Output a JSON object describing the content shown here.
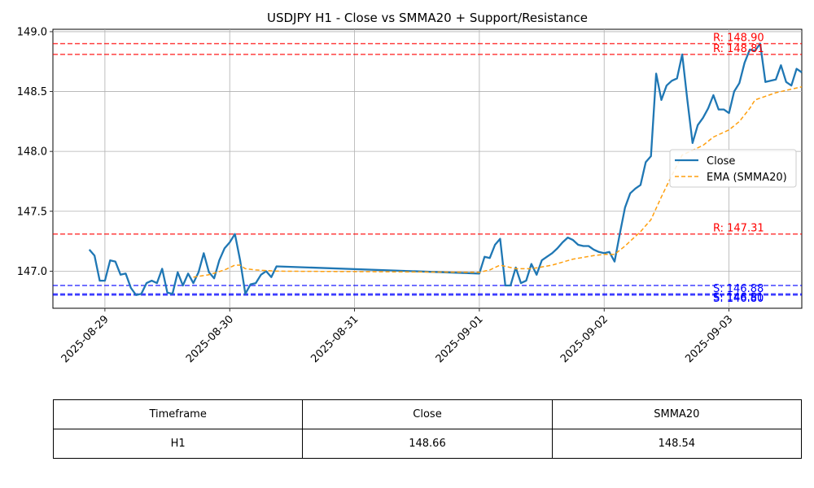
{
  "chart_data": {
    "type": "line",
    "title": "USDJPY H1 - Close vs SMMA20 + Support/Resistance",
    "xlabel": "",
    "ylabel": "",
    "ylim": [
      146.69,
      149.02
    ],
    "yticks": [
      147.0,
      147.5,
      148.0,
      148.5,
      149.0
    ],
    "ytick_labels": [
      "147.0",
      "147.5",
      "148.0",
      "148.5",
      "149.0"
    ],
    "xlim": [
      "2025-08-28 14:00",
      "2025-09-03 14:00"
    ],
    "xticks": [
      "2025-08-29",
      "2025-08-30",
      "2025-08-31",
      "2025-09-01",
      "2025-09-02",
      "2025-09-03"
    ],
    "grid": true,
    "legend_position": "center-right",
    "series": [
      {
        "name": "Close",
        "color": "#1f77b4",
        "style": "solid",
        "points": [
          [
            "2025-08-28 21:00",
            147.18
          ],
          [
            "2025-08-28 22:00",
            147.13
          ],
          [
            "2025-08-28 23:00",
            146.92
          ],
          [
            "2025-08-29 00:00",
            146.92
          ],
          [
            "2025-08-29 01:00",
            147.09
          ],
          [
            "2025-08-29 02:00",
            147.08
          ],
          [
            "2025-08-29 03:00",
            146.97
          ],
          [
            "2025-08-29 04:00",
            146.98
          ],
          [
            "2025-08-29 05:00",
            146.86
          ],
          [
            "2025-08-29 06:00",
            146.8
          ],
          [
            "2025-08-29 07:00",
            146.81
          ],
          [
            "2025-08-29 08:00",
            146.9
          ],
          [
            "2025-08-29 09:00",
            146.92
          ],
          [
            "2025-08-29 10:00",
            146.9
          ],
          [
            "2025-08-29 11:00",
            147.02
          ],
          [
            "2025-08-29 12:00",
            146.82
          ],
          [
            "2025-08-29 13:00",
            146.81
          ],
          [
            "2025-08-29 14:00",
            146.99
          ],
          [
            "2025-08-29 15:00",
            146.88
          ],
          [
            "2025-08-29 16:00",
            146.98
          ],
          [
            "2025-08-29 17:00",
            146.9
          ],
          [
            "2025-08-29 18:00",
            146.99
          ],
          [
            "2025-08-29 19:00",
            147.15
          ],
          [
            "2025-08-29 20:00",
            146.99
          ],
          [
            "2025-08-29 21:00",
            146.94
          ],
          [
            "2025-08-29 22:00",
            147.09
          ],
          [
            "2025-08-29 23:00",
            147.19
          ],
          [
            "2025-08-30 00:00",
            147.24
          ],
          [
            "2025-08-30 01:00",
            147.31
          ],
          [
            "2025-08-30 02:00",
            147.09
          ],
          [
            "2025-08-30 03:00",
            146.81
          ],
          [
            "2025-08-30 04:00",
            146.89
          ],
          [
            "2025-08-30 05:00",
            146.9
          ],
          [
            "2025-08-30 06:00",
            146.97
          ],
          [
            "2025-08-30 07:00",
            147.0
          ],
          [
            "2025-08-30 08:00",
            146.95
          ],
          [
            "2025-08-30 09:00",
            147.04
          ],
          [
            "2025-09-01 00:00",
            146.98
          ],
          [
            "2025-09-01 01:00",
            147.12
          ],
          [
            "2025-09-01 02:00",
            147.11
          ],
          [
            "2025-09-01 03:00",
            147.22
          ],
          [
            "2025-09-01 04:00",
            147.27
          ],
          [
            "2025-09-01 05:00",
            146.88
          ],
          [
            "2025-09-01 06:00",
            146.88
          ],
          [
            "2025-09-01 07:00",
            147.03
          ],
          [
            "2025-09-01 08:00",
            146.9
          ],
          [
            "2025-09-01 09:00",
            146.92
          ],
          [
            "2025-09-01 10:00",
            147.06
          ],
          [
            "2025-09-01 11:00",
            146.97
          ],
          [
            "2025-09-01 12:00",
            147.09
          ],
          [
            "2025-09-01 13:00",
            147.12
          ],
          [
            "2025-09-01 14:00",
            147.15
          ],
          [
            "2025-09-01 15:00",
            147.19
          ],
          [
            "2025-09-01 16:00",
            147.24
          ],
          [
            "2025-09-01 17:00",
            147.28
          ],
          [
            "2025-09-01 18:00",
            147.26
          ],
          [
            "2025-09-01 19:00",
            147.22
          ],
          [
            "2025-09-01 20:00",
            147.21
          ],
          [
            "2025-09-01 21:00",
            147.21
          ],
          [
            "2025-09-01 22:00",
            147.18
          ],
          [
            "2025-09-01 23:00",
            147.16
          ],
          [
            "2025-09-02 00:00",
            147.15
          ],
          [
            "2025-09-02 01:00",
            147.16
          ],
          [
            "2025-09-02 02:00",
            147.08
          ],
          [
            "2025-09-02 03:00",
            147.31
          ],
          [
            "2025-09-02 04:00",
            147.53
          ],
          [
            "2025-09-02 05:00",
            147.65
          ],
          [
            "2025-09-02 06:00",
            147.69
          ],
          [
            "2025-09-02 07:00",
            147.72
          ],
          [
            "2025-09-02 08:00",
            147.91
          ],
          [
            "2025-09-02 09:00",
            147.96
          ],
          [
            "2025-09-02 10:00",
            148.65
          ],
          [
            "2025-09-02 11:00",
            148.43
          ],
          [
            "2025-09-02 12:00",
            148.55
          ],
          [
            "2025-09-02 13:00",
            148.59
          ],
          [
            "2025-09-02 14:00",
            148.61
          ],
          [
            "2025-09-02 15:00",
            148.81
          ],
          [
            "2025-09-02 16:00",
            148.43
          ],
          [
            "2025-09-02 17:00",
            148.07
          ],
          [
            "2025-09-02 18:00",
            148.22
          ],
          [
            "2025-09-02 19:00",
            148.28
          ],
          [
            "2025-09-02 20:00",
            148.36
          ],
          [
            "2025-09-02 21:00",
            148.47
          ],
          [
            "2025-09-02 22:00",
            148.35
          ],
          [
            "2025-09-02 23:00",
            148.35
          ],
          [
            "2025-09-03 00:00",
            148.32
          ],
          [
            "2025-09-03 01:00",
            148.5
          ],
          [
            "2025-09-03 02:00",
            148.57
          ],
          [
            "2025-09-03 03:00",
            148.74
          ],
          [
            "2025-09-03 04:00",
            148.85
          ],
          [
            "2025-09-03 05:00",
            148.84
          ],
          [
            "2025-09-03 06:00",
            148.9
          ],
          [
            "2025-09-03 07:00",
            148.58
          ],
          [
            "2025-09-03 08:00",
            148.59
          ],
          [
            "2025-09-03 09:00",
            148.6
          ],
          [
            "2025-09-03 10:00",
            148.72
          ],
          [
            "2025-09-03 11:00",
            148.58
          ],
          [
            "2025-09-03 12:00",
            148.55
          ],
          [
            "2025-09-03 13:00",
            148.69
          ],
          [
            "2025-09-03 14:00",
            148.66
          ]
        ]
      },
      {
        "name": "EMA (SMMA20)",
        "color": "#ff9f0e",
        "style": "dashed",
        "points": [
          [
            "2025-08-29 17:00",
            146.95
          ],
          [
            "2025-08-29 20:00",
            146.97
          ],
          [
            "2025-08-29 23:00",
            147.01
          ],
          [
            "2025-08-30 01:00",
            147.05
          ],
          [
            "2025-08-30 02:00",
            147.05
          ],
          [
            "2025-08-30 03:00",
            147.02
          ],
          [
            "2025-08-30 05:00",
            147.01
          ],
          [
            "2025-08-30 09:00",
            147.0
          ],
          [
            "2025-09-01 00:00",
            146.99
          ],
          [
            "2025-09-01 02:00",
            147.01
          ],
          [
            "2025-09-01 04:00",
            147.05
          ],
          [
            "2025-09-01 07:00",
            147.02
          ],
          [
            "2025-09-01 10:00",
            147.02
          ],
          [
            "2025-09-01 14:00",
            147.05
          ],
          [
            "2025-09-01 18:00",
            147.1
          ],
          [
            "2025-09-01 22:00",
            147.13
          ],
          [
            "2025-09-02 00:00",
            147.14
          ],
          [
            "2025-09-02 02:00",
            147.14
          ],
          [
            "2025-09-02 04:00",
            147.21
          ],
          [
            "2025-09-02 07:00",
            147.33
          ],
          [
            "2025-09-02 09:00",
            147.43
          ],
          [
            "2025-09-02 11:00",
            147.62
          ],
          [
            "2025-09-02 13:00",
            147.8
          ],
          [
            "2025-09-02 15:00",
            147.97
          ],
          [
            "2025-09-02 17:00",
            148.01
          ],
          [
            "2025-09-02 19:00",
            148.05
          ],
          [
            "2025-09-02 21:00",
            148.12
          ],
          [
            "2025-09-03 00:00",
            148.18
          ],
          [
            "2025-09-03 02:00",
            148.25
          ],
          [
            "2025-09-03 04:00",
            148.36
          ],
          [
            "2025-09-03 05:00",
            148.43
          ],
          [
            "2025-09-03 07:00",
            148.46
          ],
          [
            "2025-09-03 09:00",
            148.49
          ],
          [
            "2025-09-03 11:00",
            148.51
          ],
          [
            "2025-09-03 14:00",
            148.54
          ]
        ]
      }
    ],
    "resistance_levels": [
      148.9,
      148.81,
      147.31
    ],
    "support_levels": [
      146.88,
      146.81,
      146.8
    ],
    "level_labels": [
      {
        "text": "R: 148.90",
        "value": 148.9,
        "color": "#ff0000"
      },
      {
        "text": "R: 148.81",
        "value": 148.81,
        "color": "#ff0000"
      },
      {
        "text": "R: 147.31",
        "value": 147.31,
        "color": "#ff0000"
      },
      {
        "text": "S: 146.88",
        "value": 146.88,
        "color": "#0000ff"
      },
      {
        "text": "S: 146.81",
        "value": 146.81,
        "color": "#0000ff"
      },
      {
        "text": "S: 146.80",
        "value": 146.8,
        "color": "#0000ff"
      }
    ],
    "resistance_color": "#ff0000",
    "support_color": "#0000ff"
  },
  "table": {
    "headers": [
      "Timeframe",
      "Close",
      "SMMA20"
    ],
    "rows": [
      [
        "H1",
        "148.66",
        "148.54"
      ]
    ]
  }
}
